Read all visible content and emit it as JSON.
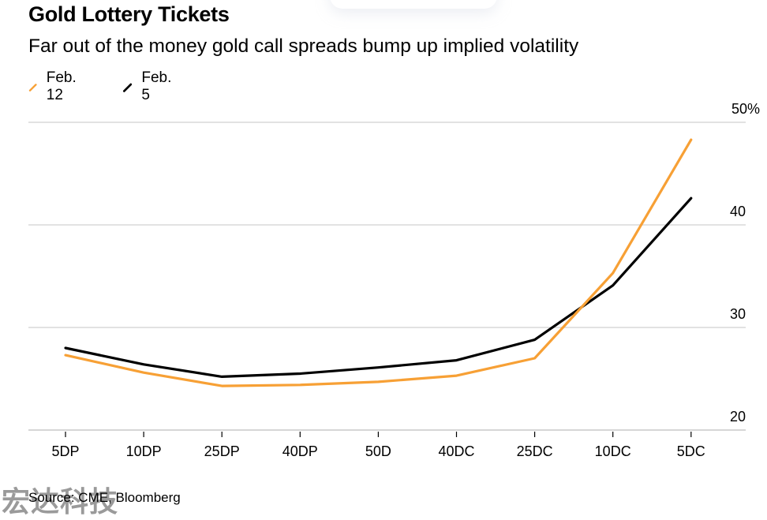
{
  "header": {
    "title": "Gold Lottery Tickets",
    "subtitle": "Far out of the money gold call spreads bump up implied volatility"
  },
  "legend": [
    {
      "label": "Feb. 12",
      "color": "#F7A035",
      "icon": "slash-line-icon"
    },
    {
      "label": "Feb. 5",
      "color": "#000000",
      "icon": "slash-line-icon"
    }
  ],
  "footer": {
    "source": "Source: CME, Bloomberg",
    "watermark": "宏达科技"
  },
  "chart_data": {
    "type": "line",
    "title": "Gold Lottery Tickets",
    "subtitle": "Far out of the money gold call spreads bump up implied volatility",
    "xlabel": "",
    "ylabel": "",
    "categories": [
      "5DP",
      "10DP",
      "25DP",
      "40DP",
      "50D",
      "40DC",
      "25DC",
      "10DC",
      "5DC"
    ],
    "series": [
      {
        "name": "Feb. 5",
        "color": "#000000",
        "values": [
          28.0,
          26.4,
          25.2,
          25.5,
          26.1,
          26.8,
          28.8,
          34.1,
          42.6
        ]
      },
      {
        "name": "Feb. 12",
        "color": "#F7A035",
        "values": [
          27.3,
          25.6,
          24.3,
          24.4,
          24.7,
          25.3,
          27.0,
          35.3,
          48.3
        ]
      }
    ],
    "yticks": [
      {
        "value": 50,
        "label": "50%"
      },
      {
        "value": 40,
        "label": "40"
      },
      {
        "value": 30,
        "label": "30"
      },
      {
        "value": 20,
        "label": "20"
      }
    ],
    "ylim": [
      20,
      50
    ],
    "grid": true,
    "y_axis_side": "right",
    "legend_position": "top-left"
  }
}
